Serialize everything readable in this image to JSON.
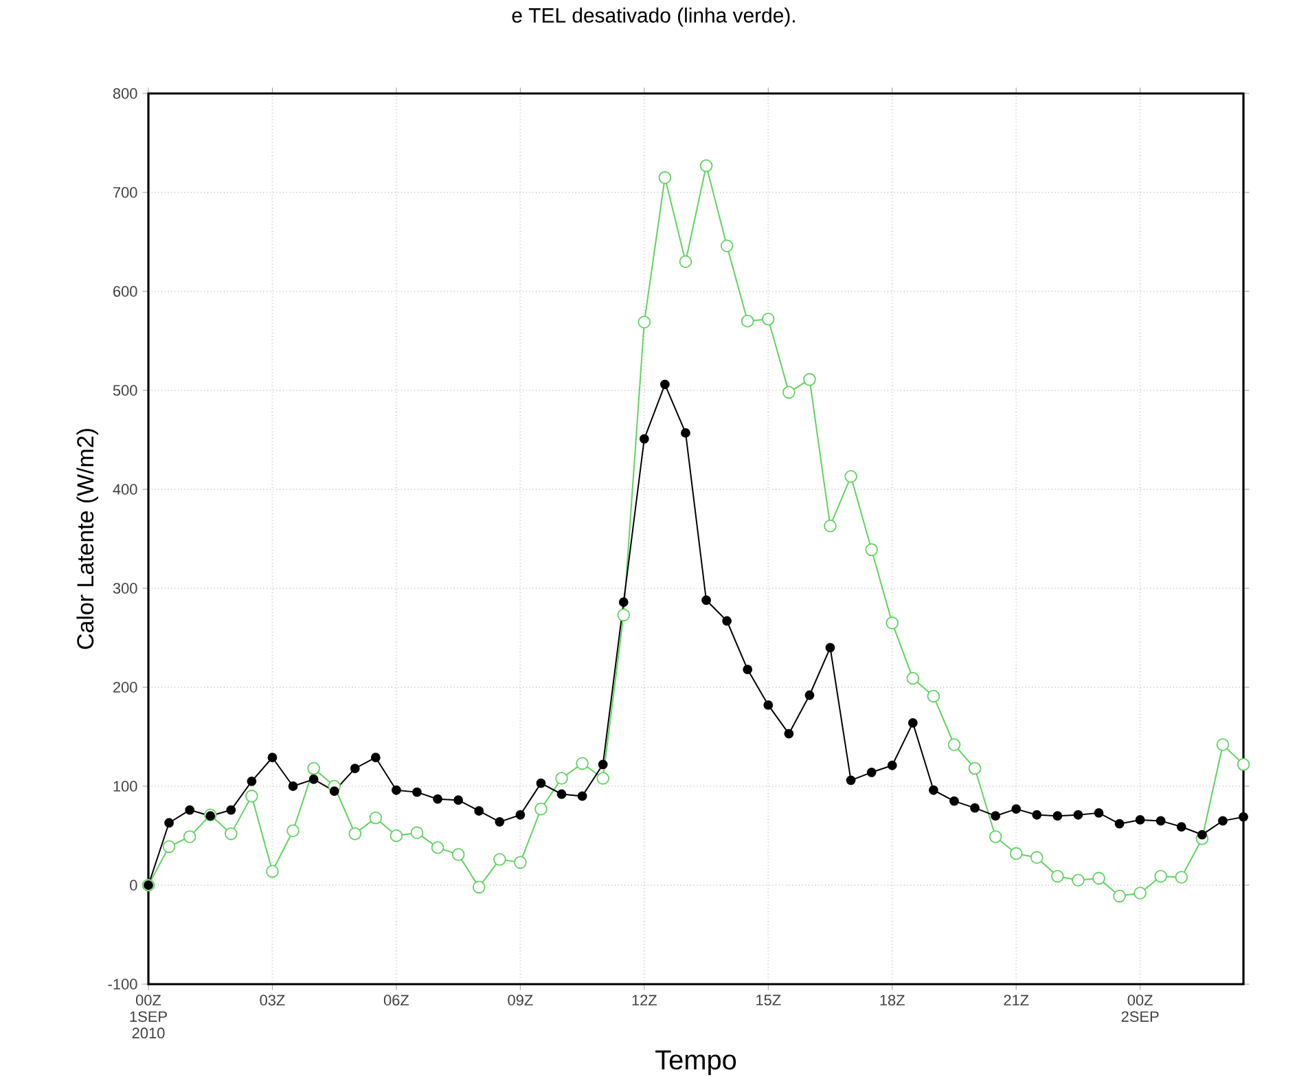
{
  "chart_data": {
    "type": "line",
    "title": "e TEL desativado (linha verde).",
    "xlabel": "Tempo",
    "ylabel": "Calor Latente (W/m2)",
    "x": [
      0,
      0.5,
      1,
      1.5,
      2,
      2.5,
      3,
      3.5,
      4,
      4.5,
      5,
      5.5,
      6,
      6.5,
      7,
      7.5,
      8,
      8.5,
      9,
      9.5,
      10,
      10.5,
      11,
      11.5,
      12,
      12.5,
      13,
      13.5,
      14,
      14.5,
      15,
      15.5,
      16,
      16.5,
      17,
      17.5,
      18,
      18.5,
      19,
      19.5,
      20,
      20.5,
      21,
      21.5,
      22,
      22.5,
      23,
      23.5,
      24,
      24.5,
      25,
      25.5,
      26,
      26.5
    ],
    "series": [
      {
        "color": "#000000",
        "values": [
          0,
          63,
          76,
          70,
          76,
          105,
          129,
          100,
          107,
          95,
          118,
          129,
          96,
          94,
          87,
          86,
          75,
          64,
          71,
          103,
          92,
          90,
          122,
          286,
          451,
          506,
          457,
          288,
          267,
          218,
          182,
          153,
          192,
          240,
          106,
          114,
          121,
          164,
          96,
          85,
          78,
          70,
          77,
          71,
          70,
          71,
          73,
          62,
          66,
          65,
          59,
          51,
          65,
          69
        ]
      },
      {
        "color": "#5fd35f",
        "values": [
          0,
          39,
          49,
          71,
          52,
          90,
          14,
          55,
          118,
          100,
          52,
          68,
          50,
          53,
          38,
          31,
          -2,
          26,
          23,
          77,
          108,
          123,
          108,
          273,
          569,
          715,
          630,
          727,
          646,
          570,
          572,
          498,
          511,
          363,
          413,
          339,
          265,
          209,
          191,
          142,
          118,
          49,
          32,
          28,
          9,
          5,
          7,
          -11,
          -8,
          9,
          8,
          47,
          142,
          122
        ]
      }
    ],
    "xlim": [
      0,
      26.5
    ],
    "ylim": [
      -100,
      800
    ],
    "xticks": [
      {
        "value": 0,
        "label": "00Z 1SEP 2010"
      },
      {
        "value": 3,
        "label": "03Z"
      },
      {
        "value": 6,
        "label": "06Z"
      },
      {
        "value": 9,
        "label": "09Z"
      },
      {
        "value": 12,
        "label": "12Z"
      },
      {
        "value": 15,
        "label": "15Z"
      },
      {
        "value": 18,
        "label": "18Z"
      },
      {
        "value": 21,
        "label": "21Z"
      },
      {
        "value": 24,
        "label": "00Z 2SEP"
      }
    ],
    "yticks": [
      -100,
      0,
      100,
      200,
      300,
      400,
      500,
      600,
      700,
      800
    ],
    "grid": true,
    "marker": "circle",
    "line_style": "solid"
  }
}
